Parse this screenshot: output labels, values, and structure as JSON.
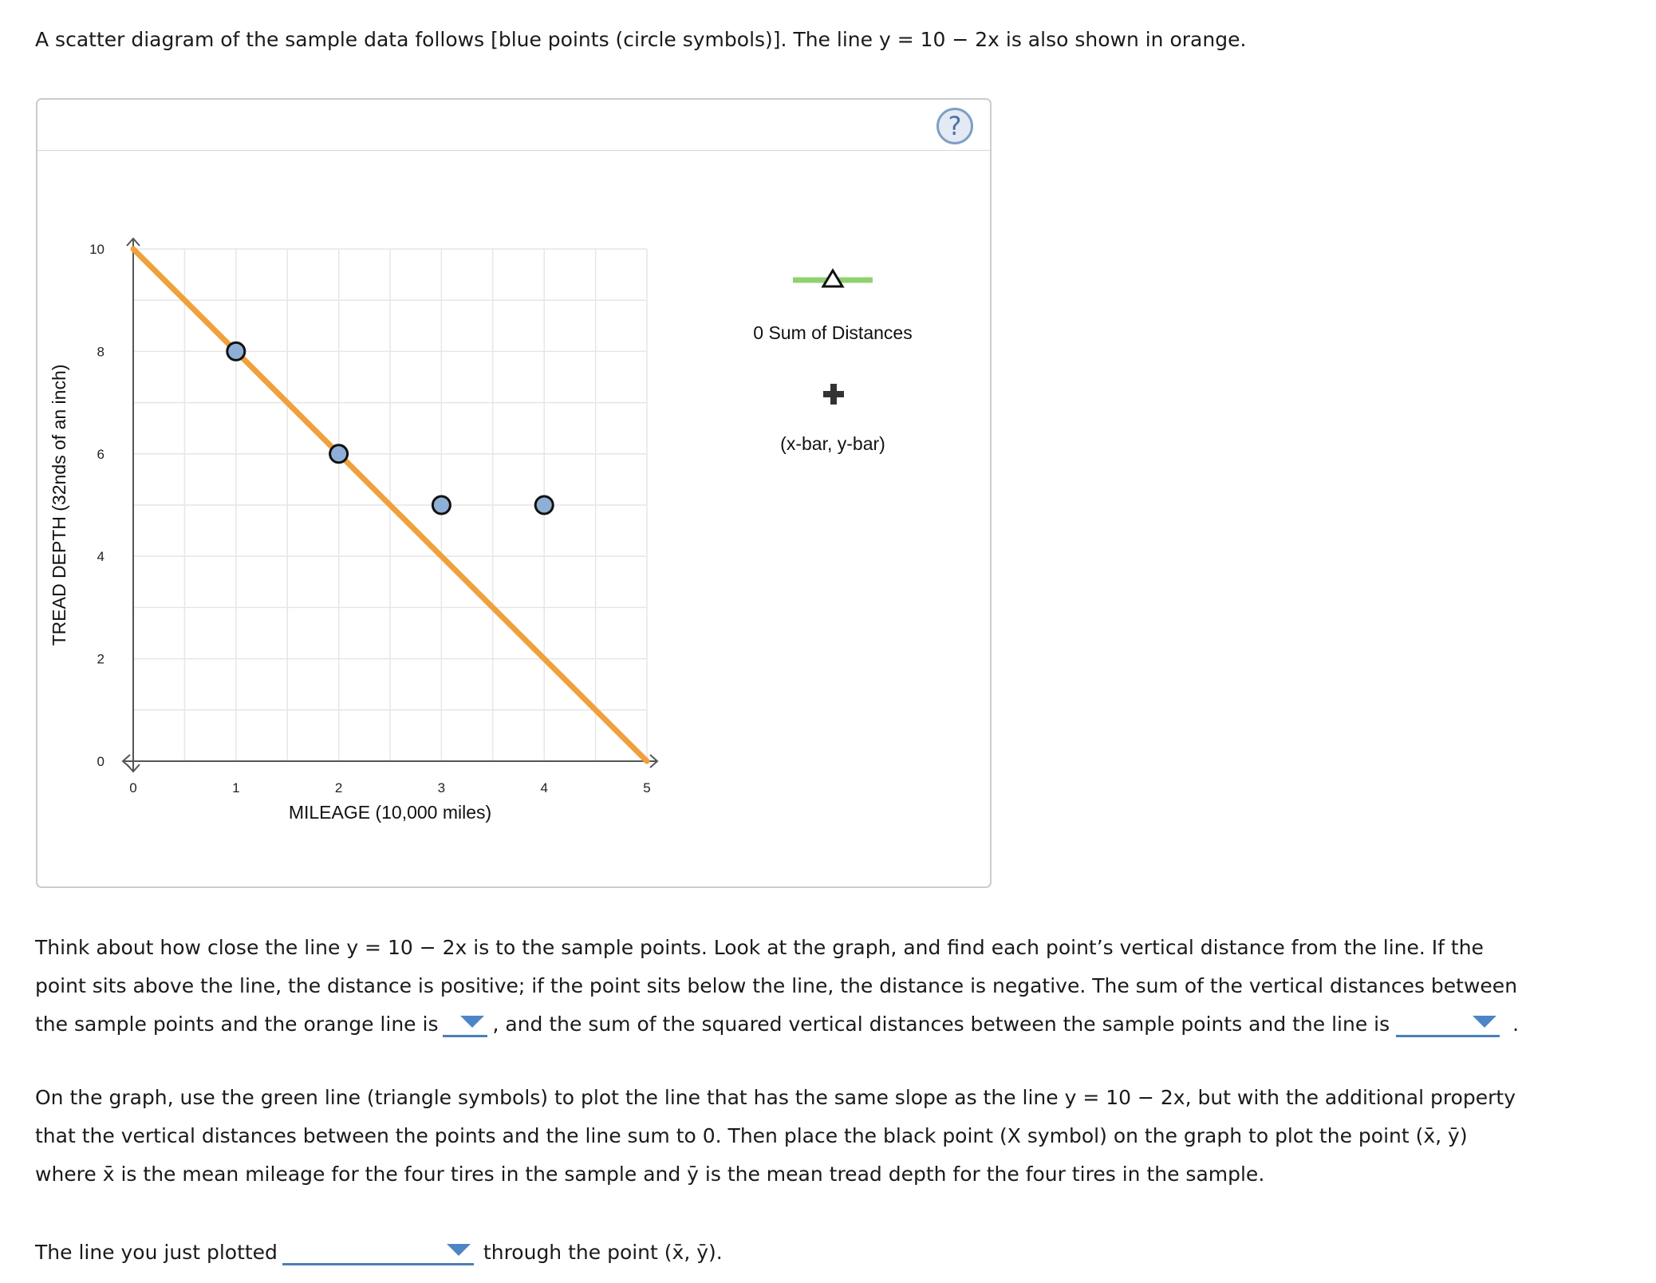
{
  "intro": "A scatter diagram of the sample data follows [blue points (circle symbols)]. The line y = 10 − 2x is also shown in orange.",
  "graph": {
    "help_label": "?",
    "legend": {
      "green_line_label": "0 Sum of Distances",
      "black_point_label": "(x-bar, y-bar)"
    }
  },
  "chart_data": {
    "type": "scatter",
    "xlabel": "MILEAGE (10,000 miles)",
    "ylabel": "TREAD DEPTH (32nds of an inch)",
    "xlim": [
      0,
      5
    ],
    "ylim": [
      0,
      10
    ],
    "x_ticks": [
      0,
      1,
      2,
      3,
      4,
      5
    ],
    "y_ticks": [
      0,
      2,
      4,
      6,
      8,
      10
    ],
    "grid": true,
    "points": [
      {
        "x": 1,
        "y": 8
      },
      {
        "x": 2,
        "y": 6
      },
      {
        "x": 3,
        "y": 5
      },
      {
        "x": 4,
        "y": 5
      }
    ],
    "line": {
      "equation": "y = 10 − 2x",
      "intercept": 10,
      "slope": -2,
      "color": "#f0a03c"
    },
    "point_color": "#8fb0d6",
    "legend_green_color": "#90d070"
  },
  "para1": {
    "text1": "Think about how close the line y = 10 − 2x is to the sample points. Look at the graph, and find each point’s vertical distance from the line. If the point sits above the line, the distance is positive; if the point sits below the line, the distance is negative. The sum of the vertical distances between the sample points and the orange line is",
    "text2": ", and the sum of the squared vertical distances between the sample points and the line is",
    "text3": "."
  },
  "dropdowns": {
    "sum_value": "",
    "squared_value": "",
    "line_value": ""
  },
  "para2": "On the graph, use the green line (triangle symbols) to plot the line that has the same slope as the line y = 10 − 2x, but with the additional property that the vertical distances between the points and the line sum to 0. Then place the black point (X symbol) on the graph to plot the point (x̄, ȳ) where x̄ is the mean mileage for the four tires in the sample and ȳ is the mean tread depth for the four tires in the sample.",
  "final": {
    "text1": "The line you just plotted",
    "text2": "through the point (x̄, ȳ)."
  }
}
